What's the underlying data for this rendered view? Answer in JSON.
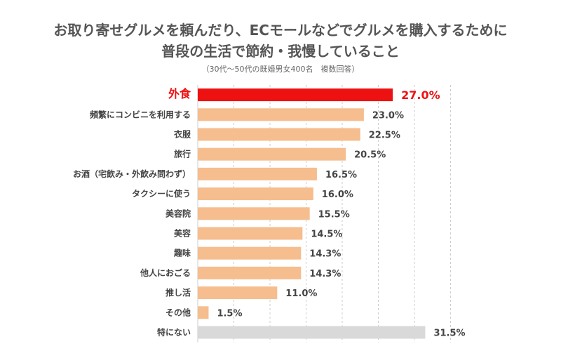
{
  "title_line1": "お取り寄せグルメを頼んだり、ECモールなどでグルメを購入するために",
  "title_line2": "普段の生活で節約・我慢していること",
  "subtitle": "（30代〜50代の既婚男女400名　複数回答）",
  "colors": {
    "highlight": "#ee1111",
    "bar": "#f6bd8e",
    "none_bar": "#d9d9d9",
    "grid": "#cccccc"
  },
  "chart_data": {
    "type": "bar",
    "orientation": "horizontal",
    "title": "お取り寄せグルメを頼んだり、ECモールなどでグルメを購入するために 普段の生活で節約・我慢していること",
    "categories": [
      "外食",
      "頻繁にコンビニを利用する",
      "衣服",
      "旅行",
      "お酒（宅飲み・外飲み問わず）",
      "タクシーに使う",
      "美容院",
      "美容",
      "趣味",
      "他人におごる",
      "推し活",
      "その他",
      "特にない"
    ],
    "values": [
      27.0,
      23.0,
      22.5,
      20.5,
      16.5,
      16.0,
      15.5,
      14.5,
      14.3,
      14.3,
      11.0,
      1.5,
      31.5
    ],
    "value_labels": [
      "27.0%",
      "23.0%",
      "22.5%",
      "20.5%",
      "16.5%",
      "16.0%",
      "15.5%",
      "14.5%",
      "14.3%",
      "14.3%",
      "11.0%",
      "1.5%",
      "31.5%"
    ],
    "highlight_index": 0,
    "none_index": 12,
    "xlim": [
      0,
      35
    ],
    "grid_step": 5,
    "grid": true,
    "xlabel": "",
    "ylabel": ""
  }
}
